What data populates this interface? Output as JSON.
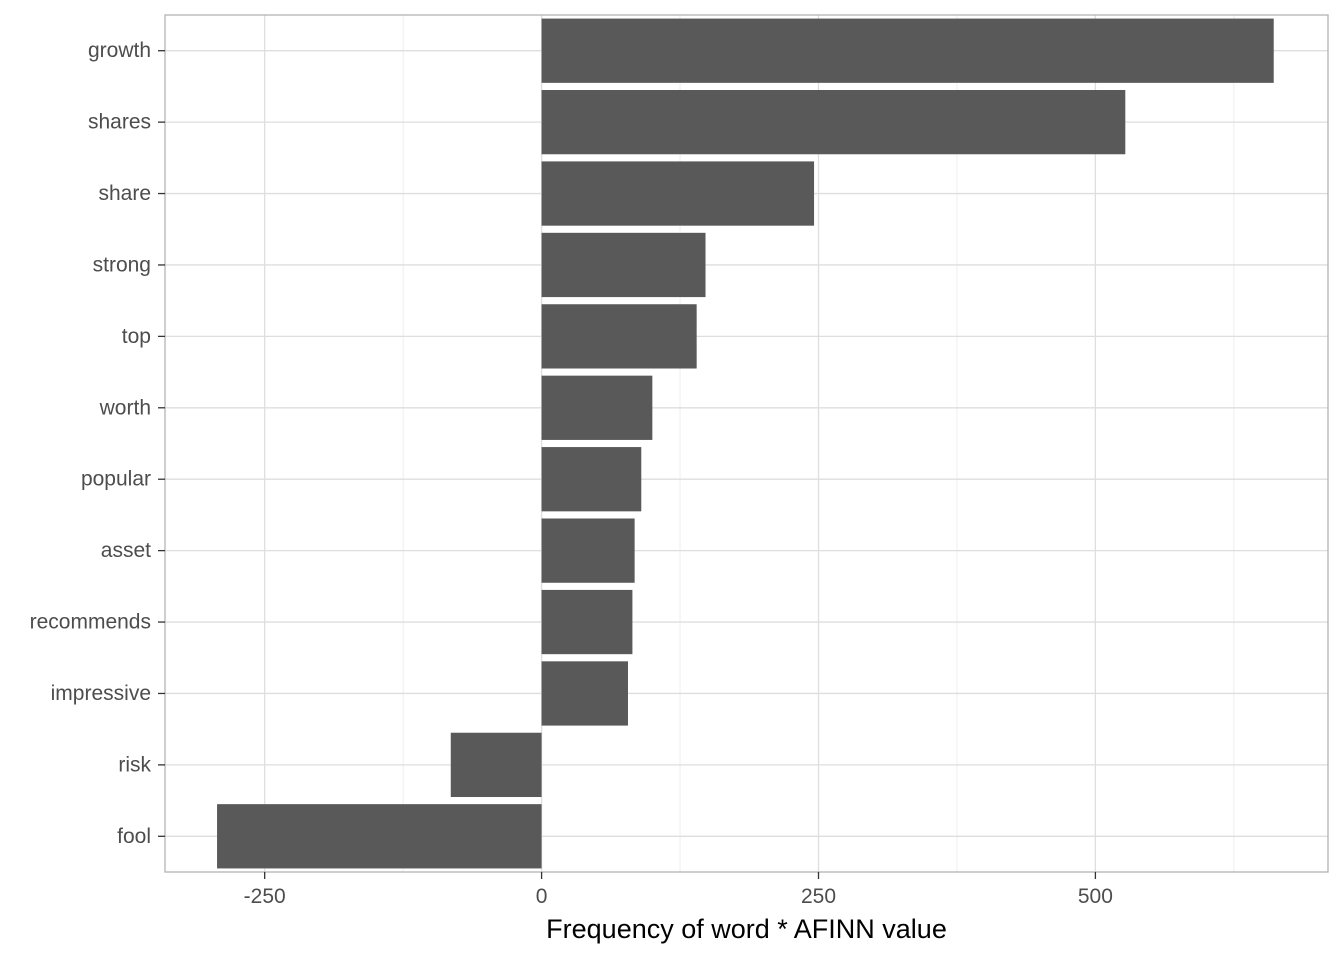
{
  "chart_data": {
    "type": "bar",
    "orientation": "horizontal",
    "categories": [
      "growth",
      "shares",
      "share",
      "strong",
      "top",
      "worth",
      "popular",
      "asset",
      "recommends",
      "impressive",
      "risk",
      "fool"
    ],
    "values": [
      661,
      527,
      246,
      148,
      140,
      100,
      90,
      84,
      82,
      78,
      -82,
      -293
    ],
    "bar_color": "#595959",
    "xlabel": "Frequency of word * AFINN value",
    "ylabel": "",
    "title": "",
    "xlim": [
      -340,
      710
    ],
    "x_ticks": [
      -250,
      0,
      250,
      500
    ],
    "x_tick_labels": [
      "-250",
      "0",
      "250",
      "500"
    ],
    "grid": true,
    "legend": "none"
  }
}
